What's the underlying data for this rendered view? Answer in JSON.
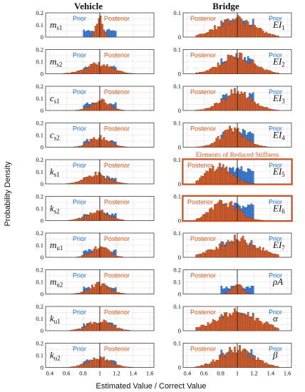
{
  "colors": {
    "prior": "#3c7fd6",
    "posterior": "#d9622e",
    "prior_text": "#1f6fc4",
    "posterior_text": "#d4561a",
    "highlight": "#e8501a"
  },
  "chart_data": {
    "type": "bar",
    "column_titles": [
      "Vehicle",
      "Bridge"
    ],
    "ylabel": "Probability Density",
    "xlabel": "Estimated Value / Correct Value",
    "xlim": [
      0.35,
      1.65
    ],
    "x_ticks": [
      "0.4",
      "0.6",
      "0.8",
      "1",
      "1.2",
      "1.4",
      "1.6"
    ],
    "y_ticks": [
      "0",
      "0.1",
      "0.2"
    ],
    "reference_value": 1,
    "legend_labels": {
      "prior": "Prior",
      "posterior": "Posterior"
    },
    "highlight_label": "Elements of Reduced Stiffness",
    "panels": [
      {
        "col": 0,
        "row": 0,
        "param": "m",
        "sub": "s1",
        "prior": {
          "mean": 1.0,
          "sd": 0.12
        },
        "posterior": {
          "mean": 1.0,
          "sd": 0.04
        },
        "ylim": [
          0,
          0.2
        ]
      },
      {
        "col": 0,
        "row": 1,
        "param": "m",
        "sub": "s2",
        "prior": {
          "mean": 1.0,
          "sd": 0.12
        },
        "posterior": {
          "mean": 0.98,
          "sd": 0.16
        },
        "ylim": [
          0,
          0.2
        ]
      },
      {
        "col": 0,
        "row": 2,
        "param": "c",
        "sub": "s1",
        "prior": {
          "mean": 1.0,
          "sd": 0.12
        },
        "posterior": {
          "mean": 1.0,
          "sd": 0.11
        },
        "ylim": [
          0,
          0.2
        ]
      },
      {
        "col": 0,
        "row": 3,
        "param": "c",
        "sub": "s2",
        "prior": {
          "mean": 1.0,
          "sd": 0.12
        },
        "posterior": {
          "mean": 1.0,
          "sd": 0.12
        },
        "ylim": [
          0,
          0.2
        ]
      },
      {
        "col": 0,
        "row": 4,
        "param": "k",
        "sub": "s1",
        "prior": {
          "mean": 1.0,
          "sd": 0.12
        },
        "posterior": {
          "mean": 0.97,
          "sd": 0.14
        },
        "ylim": [
          0,
          0.2
        ]
      },
      {
        "col": 0,
        "row": 5,
        "param": "k",
        "sub": "s2",
        "prior": {
          "mean": 1.0,
          "sd": 0.12
        },
        "posterior": {
          "mean": 0.97,
          "sd": 0.13
        },
        "ylim": [
          0,
          0.2
        ]
      },
      {
        "col": 0,
        "row": 6,
        "param": "m",
        "sub": "u1",
        "prior": {
          "mean": 1.0,
          "sd": 0.12
        },
        "posterior": {
          "mean": 1.0,
          "sd": 0.11
        },
        "ylim": [
          0,
          0.2
        ]
      },
      {
        "col": 0,
        "row": 7,
        "param": "m",
        "sub": "u2",
        "prior": {
          "mean": 1.0,
          "sd": 0.12
        },
        "posterior": {
          "mean": 1.0,
          "sd": 0.12
        },
        "ylim": [
          0,
          0.2
        ]
      },
      {
        "col": 0,
        "row": 8,
        "param": "k",
        "sub": "u1",
        "prior": {
          "mean": 1.0,
          "sd": 0.12
        },
        "posterior": {
          "mean": 1.0,
          "sd": 0.14
        },
        "ylim": [
          0,
          0.2
        ]
      },
      {
        "col": 0,
        "row": 9,
        "param": "k",
        "sub": "u2",
        "prior": {
          "mean": 1.0,
          "sd": 0.12
        },
        "posterior": {
          "mean": 1.0,
          "sd": 0.14
        },
        "ylim": [
          0,
          0.2
        ]
      },
      {
        "col": 1,
        "row": 0,
        "param": "EI",
        "sub": "1",
        "prior": {
          "mean": 1.0,
          "sd": 0.12
        },
        "posterior": {
          "mean": 0.98,
          "sd": 0.22
        },
        "ylim": [
          0,
          0.1
        ]
      },
      {
        "col": 1,
        "row": 1,
        "param": "EI",
        "sub": "2",
        "prior": {
          "mean": 1.0,
          "sd": 0.12
        },
        "posterior": {
          "mean": 1.0,
          "sd": 0.2
        },
        "ylim": [
          0,
          0.1
        ]
      },
      {
        "col": 1,
        "row": 2,
        "param": "EI",
        "sub": "3",
        "prior": {
          "mean": 1.0,
          "sd": 0.12
        },
        "posterior": {
          "mean": 1.0,
          "sd": 0.18
        },
        "ylim": [
          0,
          0.1
        ]
      },
      {
        "col": 1,
        "row": 3,
        "param": "EI",
        "sub": "4",
        "prior": {
          "mean": 1.0,
          "sd": 0.12
        },
        "posterior": {
          "mean": 0.95,
          "sd": 0.15
        },
        "ylim": [
          0,
          0.1
        ]
      },
      {
        "col": 1,
        "row": 4,
        "param": "EI",
        "sub": "5",
        "prior": {
          "mean": 1.0,
          "sd": 0.12
        },
        "posterior": {
          "mean": 0.78,
          "sd": 0.15
        },
        "ylim": [
          0,
          0.1
        ],
        "highlight": true
      },
      {
        "col": 1,
        "row": 5,
        "param": "EI",
        "sub": "6",
        "prior": {
          "mean": 1.0,
          "sd": 0.12
        },
        "posterior": {
          "mean": 0.85,
          "sd": 0.16
        },
        "ylim": [
          0,
          0.1
        ],
        "highlight": true
      },
      {
        "col": 1,
        "row": 6,
        "param": "EI",
        "sub": "7",
        "prior": {
          "mean": 1.0,
          "sd": 0.12
        },
        "posterior": {
          "mean": 1.0,
          "sd": 0.24
        },
        "ylim": [
          0,
          0.1
        ]
      },
      {
        "col": 1,
        "row": 7,
        "param": "ρA",
        "sub": "",
        "prior": {
          "mean": 1.0,
          "sd": 0.12
        },
        "posterior": {
          "mean": 1.0,
          "sd": 0.06
        },
        "ylim": [
          0,
          0.2
        ]
      },
      {
        "col": 1,
        "row": 8,
        "param": "α",
        "sub": "",
        "prior": {
          "mean": 1.0,
          "sd": 0.12
        },
        "posterior": {
          "mean": 1.0,
          "sd": 0.26
        },
        "ylim": [
          0,
          0.1
        ]
      },
      {
        "col": 1,
        "row": 9,
        "param": "β",
        "sub": "",
        "prior": {
          "mean": 1.0,
          "sd": 0.12
        },
        "posterior": {
          "mean": 1.0,
          "sd": 0.2
        },
        "ylim": [
          0,
          0.1
        ]
      }
    ]
  }
}
